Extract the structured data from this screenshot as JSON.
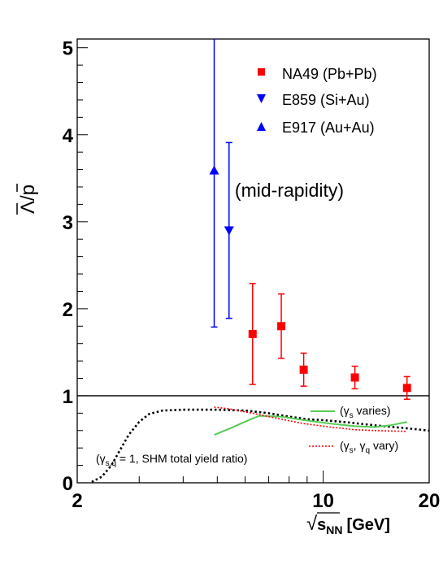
{
  "chart_data": {
    "type": "scatter",
    "xscale": "log",
    "xlim": [
      2,
      20
    ],
    "ylim": [
      0,
      5.1
    ],
    "x_ticks": [
      {
        "value": 2,
        "label": "2"
      },
      {
        "value": 10,
        "label": "10"
      },
      {
        "value": 20,
        "label": "20"
      }
    ],
    "y_ticks": [
      {
        "value": 0,
        "label": "0"
      },
      {
        "value": 1,
        "label": "1"
      },
      {
        "value": 2,
        "label": "2"
      },
      {
        "value": 3,
        "label": "3"
      },
      {
        "value": 4,
        "label": "4"
      },
      {
        "value": 5,
        "label": "5"
      }
    ],
    "xlabel": "√sNN [GeV]",
    "xlabel_sqrt": "√",
    "xlabel_s": "s",
    "xlabel_sub": "NN",
    "xlabel_unit": "[GeV]",
    "ylabel": "Λ/p",
    "annotation": "(mid-rapidity)",
    "reference_line_y": 1,
    "legend_position": "top-right",
    "series": [
      {
        "name": "NA49 (Pb+Pb)",
        "marker": "square",
        "color": "#ff0000",
        "points": [
          {
            "x": 6.3,
            "y": 1.71,
            "lo": 1.13,
            "hi": 2.29
          },
          {
            "x": 7.6,
            "y": 1.8,
            "lo": 1.43,
            "hi": 2.17
          },
          {
            "x": 8.8,
            "y": 1.3,
            "lo": 1.11,
            "hi": 1.49
          },
          {
            "x": 12.3,
            "y": 1.21,
            "lo": 1.08,
            "hi": 1.34
          },
          {
            "x": 17.3,
            "y": 1.09,
            "lo": 0.96,
            "hi": 1.22
          }
        ]
      },
      {
        "name": "E859 (Si+Au)",
        "marker": "triangle-down",
        "color": "#0000ff",
        "points": [
          {
            "x": 5.4,
            "y": 2.9,
            "lo": 1.89,
            "hi": 3.91
          }
        ]
      },
      {
        "name": "E917 (Au+Au)",
        "marker": "triangle-up",
        "color": "#0000ff",
        "points": [
          {
            "x": 4.9,
            "y": 3.59,
            "lo": 1.79,
            "hi": 5.1
          }
        ]
      }
    ],
    "curves": [
      {
        "label_open": "(γ",
        "label_sub": "s,q",
        "label_rest": " = 1, SHM total yield ratio)",
        "style": "dotted-black",
        "color": "#000000",
        "points": [
          [
            2.2,
            0.01
          ],
          [
            2.35,
            0.07
          ],
          [
            2.5,
            0.2
          ],
          [
            2.65,
            0.38
          ],
          [
            2.8,
            0.55
          ],
          [
            3.0,
            0.7
          ],
          [
            3.2,
            0.79
          ],
          [
            3.5,
            0.83
          ],
          [
            4.0,
            0.84
          ],
          [
            5.0,
            0.84
          ],
          [
            6.0,
            0.83
          ],
          [
            7.0,
            0.8
          ],
          [
            8.0,
            0.76
          ],
          [
            9.0,
            0.73
          ],
          [
            10.0,
            0.72
          ],
          [
            12.0,
            0.69
          ],
          [
            14.0,
            0.66
          ],
          [
            17.0,
            0.63
          ],
          [
            20.0,
            0.6
          ]
        ]
      },
      {
        "label_open": "(γ",
        "label_sub": "s",
        "label_rest": " varies)",
        "style": "solid-green",
        "color": "#55cc55",
        "points": [
          [
            4.9,
            0.55
          ],
          [
            5.4,
            0.62
          ],
          [
            6.3,
            0.74
          ],
          [
            6.6,
            0.77
          ],
          [
            7.6,
            0.76
          ],
          [
            8.8,
            0.72
          ],
          [
            10.5,
            0.68
          ],
          [
            12.3,
            0.65
          ],
          [
            14.0,
            0.64
          ],
          [
            15.5,
            0.66
          ],
          [
            17.3,
            0.7
          ]
        ]
      },
      {
        "label_open": "(γ",
        "label_sub": "s",
        "label_mid": ", γ",
        "label_sub2": "q",
        "label_rest": "vary)",
        "style": "dotted-red",
        "color": "#ff0000",
        "points": [
          [
            4.9,
            0.87
          ],
          [
            5.4,
            0.85
          ],
          [
            6.3,
            0.8
          ],
          [
            7.6,
            0.73
          ],
          [
            8.8,
            0.68
          ],
          [
            10.5,
            0.64
          ],
          [
            12.3,
            0.61
          ],
          [
            14.0,
            0.6
          ],
          [
            17.3,
            0.59
          ]
        ]
      }
    ]
  }
}
